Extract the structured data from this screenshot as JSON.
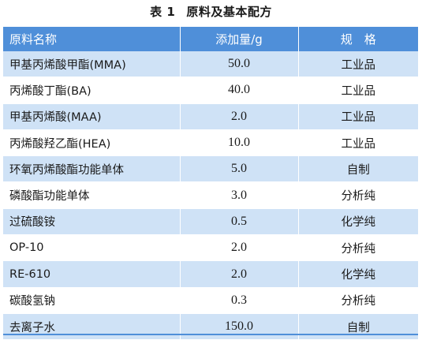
{
  "caption": {
    "number": "表 1",
    "title": "原料及基本配方"
  },
  "table": {
    "headers": [
      "原料名称",
      "添加量/g",
      "规　格"
    ],
    "rows": [
      {
        "name": "甲基丙烯酸甲酯(MMA)",
        "amount": "50.0",
        "grade": "工业品"
      },
      {
        "name": "丙烯酸丁酯(BA)",
        "amount": "40.0",
        "grade": "工业品"
      },
      {
        "name": "甲基丙烯酸(MAA)",
        "amount": "2.0",
        "grade": "工业品"
      },
      {
        "name": "丙烯酸羟乙酯(HEA)",
        "amount": "10.0",
        "grade": "工业品"
      },
      {
        "name": "环氧丙烯酸酯功能单体",
        "amount": "5.0",
        "grade": "自制"
      },
      {
        "name": "磷酸酯功能单体",
        "amount": "3.0",
        "grade": "分析纯"
      },
      {
        "name": "过硫酸铵",
        "amount": "0.5",
        "grade": "化学纯"
      },
      {
        "name": "OP-10",
        "amount": "2.0",
        "grade": "分析纯"
      },
      {
        "name": "RE-610",
        "amount": "2.0",
        "grade": "化学纯"
      },
      {
        "name": "碳酸氢钠",
        "amount": "0.3",
        "grade": "分析纯"
      },
      {
        "name": "去离子水",
        "amount": "150.0",
        "grade": "自制"
      }
    ]
  },
  "colors": {
    "header_bg": "#4f8fd9",
    "stripe_bg": "#cfe2f6",
    "header_text": "#ffffff"
  }
}
